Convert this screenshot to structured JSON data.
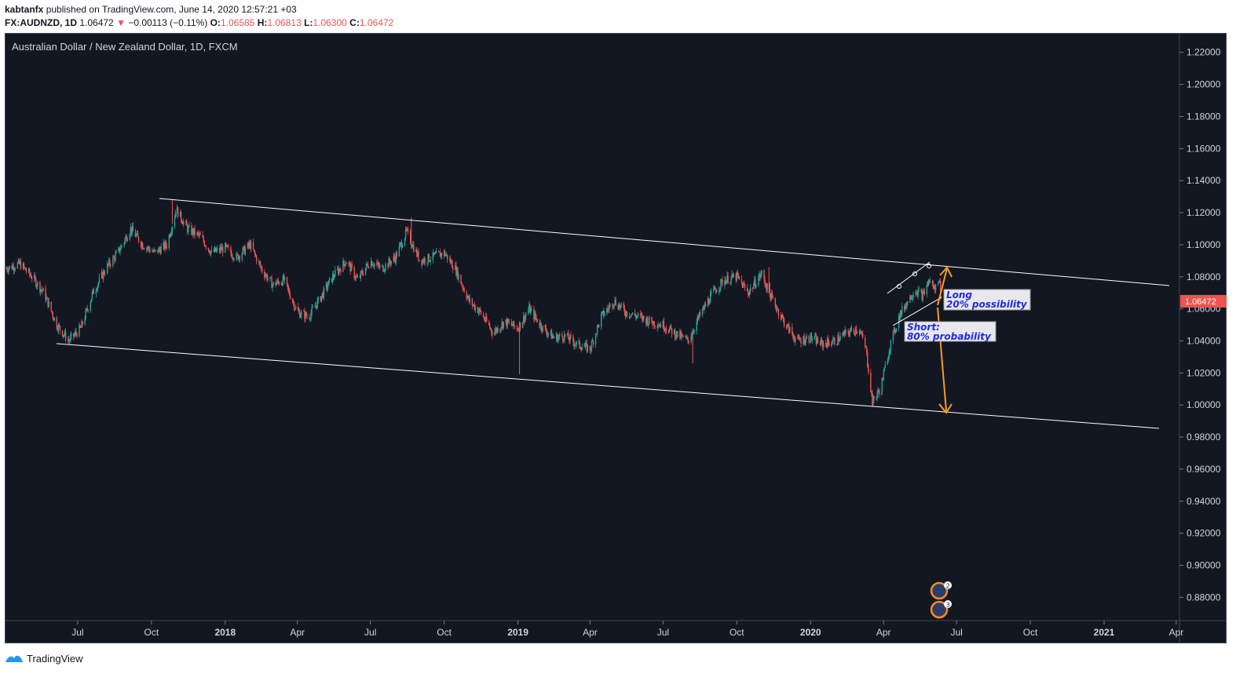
{
  "header": {
    "author": "kabtanfx",
    "published_text": "published on TradingView.com, June 14, 2020 12:57:21 +03",
    "symbol": "FX:AUDNZD, 1D",
    "last": "1.06472",
    "change": "−0.00113 (−0.11%)",
    "o_label": "O:",
    "o_value": "1.06585",
    "h_label": "H:",
    "h_value": "1.06813",
    "l_label": "L:",
    "l_value": "1.06300",
    "c_label": "C:",
    "c_value": "1.06472"
  },
  "chart_title": "Australian Dollar / New Zealand Dollar, 1D, FXCM",
  "price_tag": "1.06472",
  "footer": {
    "brand": "TradingView"
  },
  "colors": {
    "background": "#131722",
    "up": "#26a69a",
    "down": "#ef5350",
    "arrow": "#f59b27",
    "annotation_text": "#1f2be0"
  },
  "annotations": {
    "long": {
      "line1": "Long",
      "line2": "20% possibility"
    },
    "short": {
      "line1": "Short:",
      "line2": "80% probability"
    },
    "markers": [
      {
        "badge": "2"
      },
      {
        "badge": "3"
      }
    ]
  },
  "chart_data": {
    "type": "candlestick",
    "title": "Australian Dollar / New Zealand Dollar, 1D, FXCM",
    "interval": "1D",
    "y_ticks": [
      "1.22000",
      "1.20000",
      "1.18000",
      "1.16000",
      "1.14000",
      "1.12000",
      "1.10000",
      "1.08000",
      "1.06000",
      "1.04000",
      "1.02000",
      "1.00000",
      "0.98000",
      "0.96000",
      "0.94000",
      "0.92000",
      "0.90000",
      "0.88000"
    ],
    "x_ticks": [
      {
        "label": "Jul",
        "date": "2017-07-01",
        "bold": false
      },
      {
        "label": "Oct",
        "date": "2017-10-01",
        "bold": false
      },
      {
        "label": "2018",
        "date": "2018-01-01",
        "bold": true
      },
      {
        "label": "Apr",
        "date": "2018-04-01",
        "bold": false
      },
      {
        "label": "Jul",
        "date": "2018-07-01",
        "bold": false
      },
      {
        "label": "Oct",
        "date": "2018-10-01",
        "bold": false
      },
      {
        "label": "2019",
        "date": "2019-01-01",
        "bold": true
      },
      {
        "label": "Apr",
        "date": "2019-04-01",
        "bold": false
      },
      {
        "label": "Jul",
        "date": "2019-07-01",
        "bold": false
      },
      {
        "label": "Oct",
        "date": "2019-10-01",
        "bold": false
      },
      {
        "label": "2020",
        "date": "2020-01-01",
        "bold": true
      },
      {
        "label": "Apr",
        "date": "2020-04-01",
        "bold": false
      },
      {
        "label": "Jul",
        "date": "2020-07-01",
        "bold": false
      },
      {
        "label": "Oct",
        "date": "2020-10-01",
        "bold": false
      },
      {
        "label": "2021",
        "date": "2021-01-01",
        "bold": true
      },
      {
        "label": "Apr",
        "date": "2021-04-01",
        "bold": false
      }
    ],
    "y_range": [
      0.8655,
      1.2321
    ],
    "x_range": [
      "2017-04-01",
      "2021-04-05"
    ],
    "trend_path": [
      [
        "2017-04-01",
        1.085
      ],
      [
        "2017-04-20",
        1.088
      ],
      [
        "2017-05-05",
        1.08
      ],
      [
        "2017-05-20",
        1.07
      ],
      [
        "2017-06-05",
        1.05
      ],
      [
        "2017-06-20",
        1.04
      ],
      [
        "2017-07-05",
        1.048
      ],
      [
        "2017-07-20",
        1.07
      ],
      [
        "2017-08-05",
        1.085
      ],
      [
        "2017-08-20",
        1.095
      ],
      [
        "2017-09-05",
        1.11
      ],
      [
        "2017-09-20",
        1.1
      ],
      [
        "2017-10-05",
        1.095
      ],
      [
        "2017-10-20",
        1.1
      ],
      [
        "2017-11-01",
        1.122
      ],
      [
        "2017-11-15",
        1.11
      ],
      [
        "2017-12-01",
        1.105
      ],
      [
        "2017-12-15",
        1.095
      ],
      [
        "2018-01-01",
        1.098
      ],
      [
        "2018-01-15",
        1.092
      ],
      [
        "2018-02-01",
        1.1
      ],
      [
        "2018-02-15",
        1.085
      ],
      [
        "2018-03-01",
        1.075
      ],
      [
        "2018-03-15",
        1.078
      ],
      [
        "2018-04-01",
        1.058
      ],
      [
        "2018-04-15",
        1.055
      ],
      [
        "2018-05-01",
        1.068
      ],
      [
        "2018-05-15",
        1.08
      ],
      [
        "2018-06-01",
        1.09
      ],
      [
        "2018-06-15",
        1.078
      ],
      [
        "2018-07-01",
        1.09
      ],
      [
        "2018-07-15",
        1.085
      ],
      [
        "2018-08-01",
        1.092
      ],
      [
        "2018-08-15",
        1.108
      ],
      [
        "2018-09-01",
        1.09
      ],
      [
        "2018-09-15",
        1.092
      ],
      [
        "2018-10-01",
        1.095
      ],
      [
        "2018-10-15",
        1.085
      ],
      [
        "2018-11-01",
        1.065
      ],
      [
        "2018-11-15",
        1.058
      ],
      [
        "2018-12-01",
        1.045
      ],
      [
        "2018-12-15",
        1.052
      ],
      [
        "2019-01-01",
        1.048
      ],
      [
        "2019-01-15",
        1.06
      ],
      [
        "2019-02-01",
        1.048
      ],
      [
        "2019-02-15",
        1.042
      ],
      [
        "2019-03-01",
        1.043
      ],
      [
        "2019-03-15",
        1.038
      ],
      [
        "2019-04-01",
        1.035
      ],
      [
        "2019-04-15",
        1.055
      ],
      [
        "2019-05-01",
        1.065
      ],
      [
        "2019-05-15",
        1.058
      ],
      [
        "2019-06-01",
        1.055
      ],
      [
        "2019-06-15",
        1.052
      ],
      [
        "2019-07-01",
        1.05
      ],
      [
        "2019-07-15",
        1.045
      ],
      [
        "2019-08-01",
        1.04
      ],
      [
        "2019-08-15",
        1.055
      ],
      [
        "2019-09-01",
        1.07
      ],
      [
        "2019-09-15",
        1.078
      ],
      [
        "2019-10-01",
        1.08
      ],
      [
        "2019-10-15",
        1.07
      ],
      [
        "2019-11-01",
        1.082
      ],
      [
        "2019-11-10",
        1.07
      ],
      [
        "2019-12-01",
        1.05
      ],
      [
        "2019-12-15",
        1.04
      ],
      [
        "2020-01-01",
        1.042
      ],
      [
        "2020-01-15",
        1.038
      ],
      [
        "2020-02-01",
        1.04
      ],
      [
        "2020-02-15",
        1.045
      ],
      [
        "2020-03-01",
        1.048
      ],
      [
        "2020-03-10",
        1.035
      ],
      [
        "2020-03-18",
        1.002
      ],
      [
        "2020-03-28",
        1.01
      ],
      [
        "2020-04-08",
        1.035
      ],
      [
        "2020-04-20",
        1.055
      ],
      [
        "2020-05-01",
        1.065
      ],
      [
        "2020-05-10",
        1.072
      ],
      [
        "2020-05-20",
        1.068
      ],
      [
        "2020-05-28",
        1.078
      ],
      [
        "2020-06-04",
        1.072
      ],
      [
        "2020-06-09",
        1.08
      ],
      [
        "2020-06-12",
        1.065
      ]
    ],
    "current_price": 1.06472
  }
}
